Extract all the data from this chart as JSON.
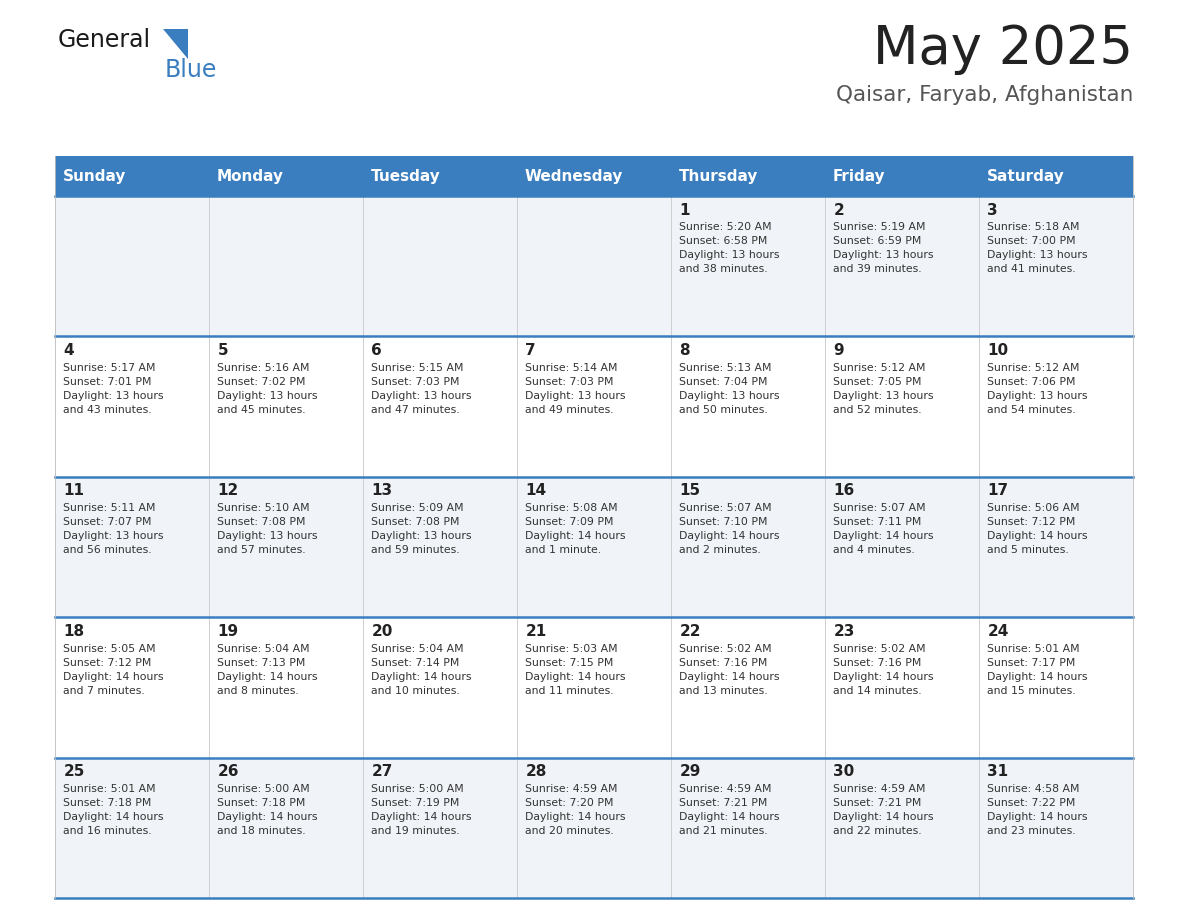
{
  "title": "May 2025",
  "subtitle": "Qaisar, Faryab, Afghanistan",
  "days_of_week": [
    "Sunday",
    "Monday",
    "Tuesday",
    "Wednesday",
    "Thursday",
    "Friday",
    "Saturday"
  ],
  "header_bg": "#3a7ebf",
  "header_text": "#ffffff",
  "row_bg_odd": "#f0f4f8",
  "row_bg_even": "#ffffff",
  "separator_color": "#3a7ebf",
  "cell_text_color": "#333333",
  "day_num_color": "#222222",
  "title_color": "#222222",
  "subtitle_color": "#555555",
  "calendar": [
    [
      {
        "day": null,
        "info": ""
      },
      {
        "day": null,
        "info": ""
      },
      {
        "day": null,
        "info": ""
      },
      {
        "day": null,
        "info": ""
      },
      {
        "day": 1,
        "info": "Sunrise: 5:20 AM\nSunset: 6:58 PM\nDaylight: 13 hours\nand 38 minutes."
      },
      {
        "day": 2,
        "info": "Sunrise: 5:19 AM\nSunset: 6:59 PM\nDaylight: 13 hours\nand 39 minutes."
      },
      {
        "day": 3,
        "info": "Sunrise: 5:18 AM\nSunset: 7:00 PM\nDaylight: 13 hours\nand 41 minutes."
      }
    ],
    [
      {
        "day": 4,
        "info": "Sunrise: 5:17 AM\nSunset: 7:01 PM\nDaylight: 13 hours\nand 43 minutes."
      },
      {
        "day": 5,
        "info": "Sunrise: 5:16 AM\nSunset: 7:02 PM\nDaylight: 13 hours\nand 45 minutes."
      },
      {
        "day": 6,
        "info": "Sunrise: 5:15 AM\nSunset: 7:03 PM\nDaylight: 13 hours\nand 47 minutes."
      },
      {
        "day": 7,
        "info": "Sunrise: 5:14 AM\nSunset: 7:03 PM\nDaylight: 13 hours\nand 49 minutes."
      },
      {
        "day": 8,
        "info": "Sunrise: 5:13 AM\nSunset: 7:04 PM\nDaylight: 13 hours\nand 50 minutes."
      },
      {
        "day": 9,
        "info": "Sunrise: 5:12 AM\nSunset: 7:05 PM\nDaylight: 13 hours\nand 52 minutes."
      },
      {
        "day": 10,
        "info": "Sunrise: 5:12 AM\nSunset: 7:06 PM\nDaylight: 13 hours\nand 54 minutes."
      }
    ],
    [
      {
        "day": 11,
        "info": "Sunrise: 5:11 AM\nSunset: 7:07 PM\nDaylight: 13 hours\nand 56 minutes."
      },
      {
        "day": 12,
        "info": "Sunrise: 5:10 AM\nSunset: 7:08 PM\nDaylight: 13 hours\nand 57 minutes."
      },
      {
        "day": 13,
        "info": "Sunrise: 5:09 AM\nSunset: 7:08 PM\nDaylight: 13 hours\nand 59 minutes."
      },
      {
        "day": 14,
        "info": "Sunrise: 5:08 AM\nSunset: 7:09 PM\nDaylight: 14 hours\nand 1 minute."
      },
      {
        "day": 15,
        "info": "Sunrise: 5:07 AM\nSunset: 7:10 PM\nDaylight: 14 hours\nand 2 minutes."
      },
      {
        "day": 16,
        "info": "Sunrise: 5:07 AM\nSunset: 7:11 PM\nDaylight: 14 hours\nand 4 minutes."
      },
      {
        "day": 17,
        "info": "Sunrise: 5:06 AM\nSunset: 7:12 PM\nDaylight: 14 hours\nand 5 minutes."
      }
    ],
    [
      {
        "day": 18,
        "info": "Sunrise: 5:05 AM\nSunset: 7:12 PM\nDaylight: 14 hours\nand 7 minutes."
      },
      {
        "day": 19,
        "info": "Sunrise: 5:04 AM\nSunset: 7:13 PM\nDaylight: 14 hours\nand 8 minutes."
      },
      {
        "day": 20,
        "info": "Sunrise: 5:04 AM\nSunset: 7:14 PM\nDaylight: 14 hours\nand 10 minutes."
      },
      {
        "day": 21,
        "info": "Sunrise: 5:03 AM\nSunset: 7:15 PM\nDaylight: 14 hours\nand 11 minutes."
      },
      {
        "day": 22,
        "info": "Sunrise: 5:02 AM\nSunset: 7:16 PM\nDaylight: 14 hours\nand 13 minutes."
      },
      {
        "day": 23,
        "info": "Sunrise: 5:02 AM\nSunset: 7:16 PM\nDaylight: 14 hours\nand 14 minutes."
      },
      {
        "day": 24,
        "info": "Sunrise: 5:01 AM\nSunset: 7:17 PM\nDaylight: 14 hours\nand 15 minutes."
      }
    ],
    [
      {
        "day": 25,
        "info": "Sunrise: 5:01 AM\nSunset: 7:18 PM\nDaylight: 14 hours\nand 16 minutes."
      },
      {
        "day": 26,
        "info": "Sunrise: 5:00 AM\nSunset: 7:18 PM\nDaylight: 14 hours\nand 18 minutes."
      },
      {
        "day": 27,
        "info": "Sunrise: 5:00 AM\nSunset: 7:19 PM\nDaylight: 14 hours\nand 19 minutes."
      },
      {
        "day": 28,
        "info": "Sunrise: 4:59 AM\nSunset: 7:20 PM\nDaylight: 14 hours\nand 20 minutes."
      },
      {
        "day": 29,
        "info": "Sunrise: 4:59 AM\nSunset: 7:21 PM\nDaylight: 14 hours\nand 21 minutes."
      },
      {
        "day": 30,
        "info": "Sunrise: 4:59 AM\nSunset: 7:21 PM\nDaylight: 14 hours\nand 22 minutes."
      },
      {
        "day": 31,
        "info": "Sunrise: 4:58 AM\nSunset: 7:22 PM\nDaylight: 14 hours\nand 23 minutes."
      }
    ]
  ]
}
